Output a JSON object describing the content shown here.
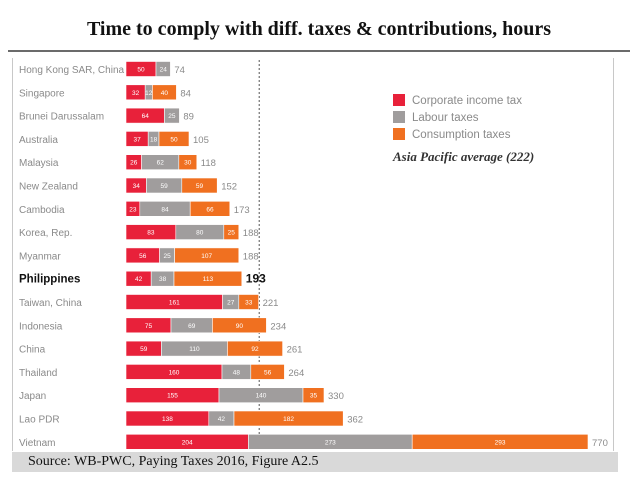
{
  "slide": {
    "title": "Time to comply with diff. taxes & contributions, hours",
    "source": "Source: WB-PWC, Paying Taxes 2016, Figure A2.5"
  },
  "chart_data": {
    "type": "bar",
    "orientation": "horizontal",
    "stacked": true,
    "categories": [
      "Hong Kong SAR, China",
      "Singapore",
      "Brunei Darussalam",
      "Australia",
      "Malaysia",
      "New Zealand",
      "Cambodia",
      "Korea, Rep.",
      "Myanmar",
      "Philippines",
      "Taiwan, China",
      "Indonesia",
      "China",
      "Thailand",
      "Japan",
      "Lao PDR",
      "Vietnam"
    ],
    "series": [
      {
        "name": "Corporate income tax",
        "color": "#e8213a",
        "values": [
          50,
          32,
          64,
          37,
          26,
          34,
          23,
          83,
          56,
          42,
          161,
          75,
          59,
          160,
          155,
          138,
          204
        ]
      },
      {
        "name": "Labour taxes",
        "color": "#a09d9d",
        "values": [
          24,
          12,
          25,
          18,
          62,
          59,
          84,
          80,
          25,
          38,
          27,
          69,
          110,
          48,
          140,
          42,
          273
        ]
      },
      {
        "name": "Consumption taxes",
        "color": "#f07020",
        "values": [
          null,
          40,
          null,
          50,
          30,
          59,
          66,
          25,
          107,
          113,
          33,
          90,
          92,
          56,
          35,
          182,
          293
        ]
      }
    ],
    "segment_labels": [
      [
        "50",
        "24",
        ""
      ],
      [
        "32",
        "12",
        "40"
      ],
      [
        "64",
        "25",
        ""
      ],
      [
        "37",
        "18",
        "50"
      ],
      [
        "26",
        "62",
        "30"
      ],
      [
        "34",
        "59",
        "59"
      ],
      [
        "23",
        "84",
        "66"
      ],
      [
        "83",
        "80",
        "25"
      ],
      [
        "56",
        "25",
        "107"
      ],
      [
        "42",
        "38",
        "113"
      ],
      [
        "161",
        "27",
        "33"
      ],
      [
        "75",
        "69",
        "90"
      ],
      [
        "59",
        "110",
        "92"
      ],
      [
        "160",
        "48",
        "56"
      ],
      [
        "155",
        "140",
        "35"
      ],
      [
        "138",
        "42",
        "182"
      ],
      [
        "204",
        "273",
        "293"
      ]
    ],
    "totals": [
      74,
      84,
      89,
      105,
      118,
      152,
      173,
      188,
      188,
      193,
      221,
      234,
      261,
      264,
      330,
      362,
      770
    ],
    "highlight_index": 9,
    "reference_line": {
      "value": 222,
      "label": "Asia Pacific average (222)",
      "style": "dotted"
    },
    "xlim": [
      0,
      790
    ],
    "grid": false,
    "legend_position": "top-right",
    "title": "Time to comply with diff. taxes & contributions, hours"
  }
}
